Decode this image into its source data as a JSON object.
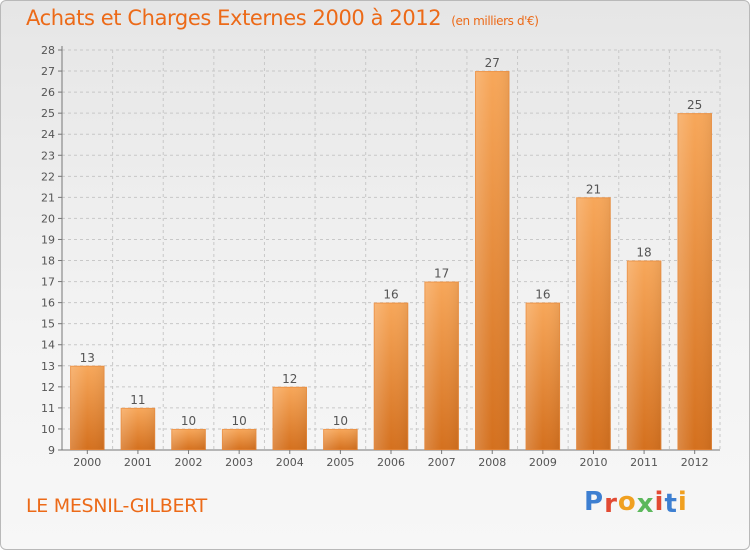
{
  "header": {
    "title": "Achats et Charges Externes 2000 à 2012",
    "unit": "(en milliers d'€)"
  },
  "footer": {
    "commune": "LE MESNIL-GILBERT",
    "logo": "Proxiti",
    "logo_colors": [
      "#3d7fd1",
      "#e24a33",
      "#f0a020",
      "#5cb85c",
      "#e24a33",
      "#3d7fd1",
      "#f0a020"
    ]
  },
  "chart_data": {
    "type": "bar",
    "categories": [
      "2000",
      "2001",
      "2002",
      "2003",
      "2004",
      "2005",
      "2006",
      "2007",
      "2008",
      "2009",
      "2010",
      "2011",
      "2012"
    ],
    "values": [
      13,
      11,
      10,
      10,
      12,
      10,
      16,
      17,
      27,
      16,
      21,
      18,
      25
    ],
    "data_labels": [
      "13",
      "11",
      "10",
      "10",
      "12",
      "10",
      "16",
      "17",
      "27",
      "16",
      "21",
      "18",
      "25"
    ],
    "yticks": [
      "9",
      "10",
      "11",
      "12",
      "13",
      "14",
      "15",
      "16",
      "17",
      "18",
      "19",
      "20",
      "21",
      "22",
      "23",
      "24",
      "25",
      "26",
      "27",
      "28"
    ],
    "ylim": [
      9,
      28
    ],
    "grid": true,
    "bar_color_top": "#f7a75a",
    "bar_color_bottom": "#d4701e",
    "grid_color": "#c8c8c8",
    "text_color": "#555555"
  }
}
